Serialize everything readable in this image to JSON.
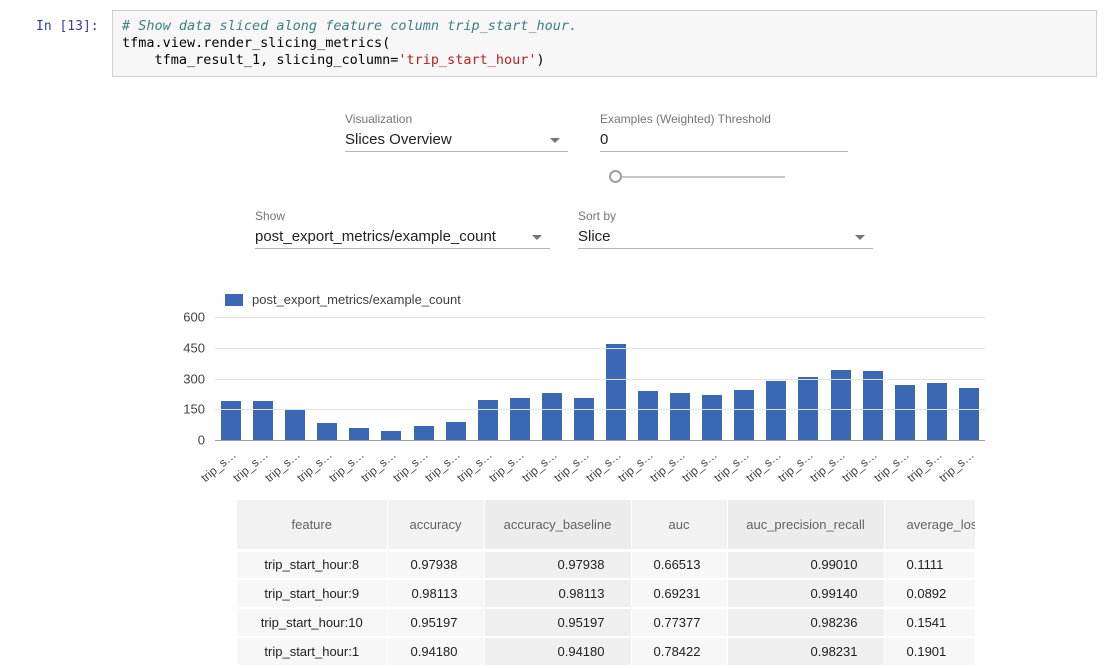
{
  "notebook": {
    "prompt": "In [13]:",
    "comment": "# Show data sliced along feature column trip_start_hour.",
    "line2": "tfma.view.render_slicing_metrics(",
    "line3_pre": "    tfma_result_1, slicing_column=",
    "line3_string": "'trip_start_hour'",
    "line3_close": ")"
  },
  "controls": {
    "visualization_label": "Visualization",
    "visualization_value": "Slices Overview",
    "threshold_label": "Examples (Weighted) Threshold",
    "threshold_value": "0",
    "show_label": "Show",
    "show_value": "post_export_metrics/example_count",
    "sort_label": "Sort by",
    "sort_value": "Slice"
  },
  "chart_data": {
    "type": "bar",
    "title": "",
    "legend": "post_export_metrics/example_count",
    "legend_position": "top",
    "color": "#3b68b5",
    "xlabel": "",
    "ylabel": "",
    "ylim": [
      0,
      600
    ],
    "yticks": [
      600,
      450,
      300,
      150,
      0
    ],
    "grid": true,
    "categories": [
      "trip_s…",
      "trip_s…",
      "trip_s…",
      "trip_s…",
      "trip_s…",
      "trip_s…",
      "trip_s…",
      "trip_s…",
      "trip_s…",
      "trip_s…",
      "trip_s…",
      "trip_s…",
      "trip_s…",
      "trip_s…",
      "trip_s…",
      "trip_s…",
      "trip_s…",
      "trip_s…",
      "trip_s…",
      "trip_s…",
      "trip_s…",
      "trip_s…",
      "trip_s…",
      "trip_s…"
    ],
    "values": [
      190,
      188,
      150,
      85,
      58,
      45,
      68,
      90,
      193,
      205,
      228,
      207,
      468,
      238,
      230,
      220,
      245,
      288,
      308,
      340,
      338,
      268,
      278,
      252
    ]
  },
  "table": {
    "headers": [
      "feature",
      "accuracy",
      "accuracy_baseline",
      "auc",
      "auc_precision_recall",
      "average_loss"
    ],
    "rows": [
      [
        "trip_start_hour:8",
        "0.97938",
        "0.97938",
        "0.66513",
        "0.99010",
        "0.1111"
      ],
      [
        "trip_start_hour:9",
        "0.98113",
        "0.98113",
        "0.69231",
        "0.99140",
        "0.0892"
      ],
      [
        "trip_start_hour:10",
        "0.95197",
        "0.95197",
        "0.77377",
        "0.98236",
        "0.1541"
      ],
      [
        "trip_start_hour:1",
        "0.94180",
        "0.94180",
        "0.78422",
        "0.98231",
        "0.1901"
      ]
    ]
  }
}
